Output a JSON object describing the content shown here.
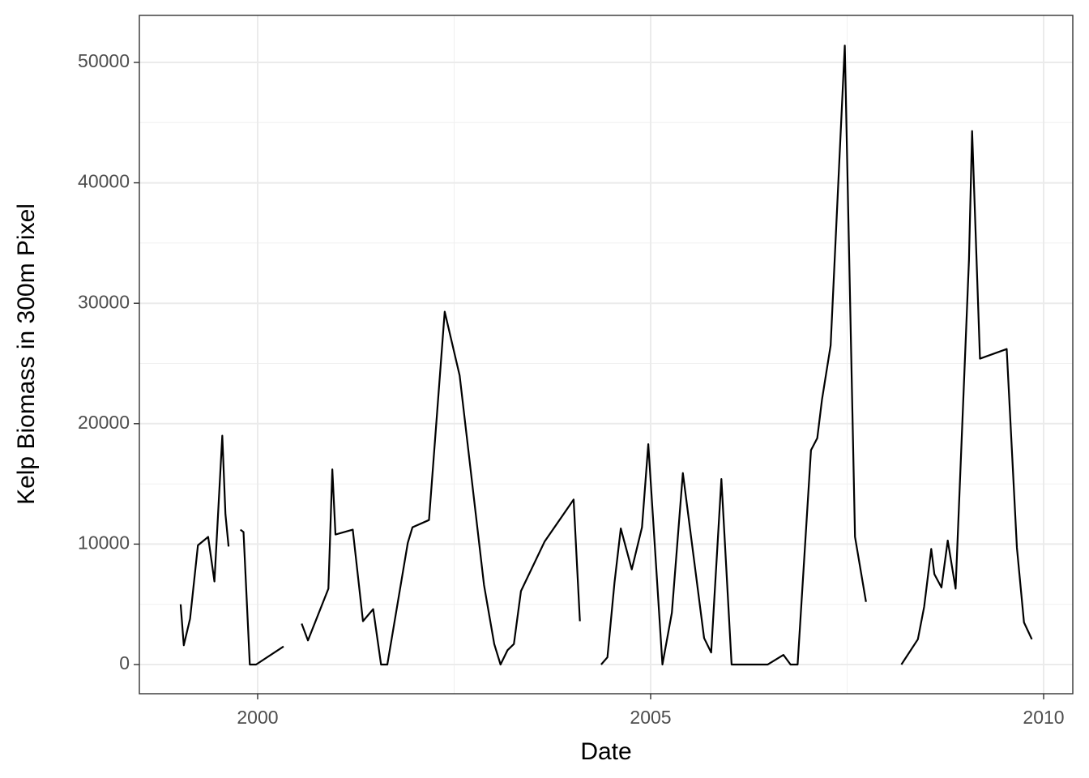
{
  "chart_data": {
    "type": "line",
    "x_label": "Date",
    "y_label": "Kelp Biomass in 300m Pixel",
    "x": [
      1999.02,
      1999.06,
      1999.14,
      1999.24,
      1999.37,
      1999.45,
      1999.55,
      1999.59,
      1999.63,
      1999.7,
      1999.78,
      1999.82,
      1999.9,
      1999.98,
      2000.33,
      2000.45,
      2000.56,
      2000.64,
      2000.9,
      2000.95,
      2000.99,
      2001.21,
      2001.34,
      2001.47,
      2001.57,
      2001.65,
      2001.91,
      2001.97,
      2002.18,
      2002.38,
      2002.57,
      2002.88,
      2003.01,
      2003.09,
      2003.18,
      2003.26,
      2003.35,
      2003.65,
      2004.02,
      2004.1,
      2004.25,
      2004.37,
      2004.45,
      2004.54,
      2004.62,
      2004.76,
      2004.89,
      2004.97,
      2005.15,
      2005.27,
      2005.41,
      2005.68,
      2005.77,
      2005.9,
      2006.03,
      2006.49,
      2006.69,
      2006.78,
      2006.87,
      2007.04,
      2007.12,
      2007.18,
      2007.29,
      2007.47,
      2007.6,
      2007.74,
      2007.95,
      2008.19,
      2008.4,
      2008.48,
      2008.57,
      2008.61,
      2008.7,
      2008.78,
      2008.88,
      2009.05,
      2009.09,
      2009.19,
      2009.53,
      2009.66,
      2009.75,
      2009.85
    ],
    "values": [
      5000,
      1600,
      3800,
      9900,
      10600,
      6900,
      19000,
      12500,
      9800,
      null,
      11200,
      11000,
      0,
      0,
      1500,
      null,
      3400,
      2000,
      6300,
      16200,
      10800,
      11200,
      3600,
      4600,
      0,
      0,
      10100,
      11400,
      12000,
      29300,
      24000,
      6600,
      1700,
      0,
      1200,
      1700,
      6100,
      10200,
      13700,
      3600,
      null,
      0,
      600,
      6800,
      11300,
      7900,
      11400,
      18300,
      0,
      4300,
      15900,
      2200,
      1000,
      15400,
      0,
      0,
      800,
      0,
      0,
      17800,
      18800,
      22000,
      26500,
      51400,
      10600,
      5200,
      null,
      0,
      2100,
      4800,
      9600,
      7500,
      6400,
      10300,
      6300,
      33600,
      44300,
      25400,
      26200,
      9700,
      3500,
      2100
    ],
    "color": "#000000",
    "xlim": [
      1998.495,
      2010.371
    ],
    "xticks": [
      2000,
      2005,
      2010
    ],
    "x_minor_ticks": [
      2002.5,
      2007.5
    ],
    "ylim": [
      -2423,
      53903
    ],
    "yticks": [
      0,
      10000,
      20000,
      30000,
      40000,
      50000
    ],
    "y_minor_ticks": [
      5000,
      15000,
      25000,
      35000,
      45000
    ],
    "grid": true
  }
}
